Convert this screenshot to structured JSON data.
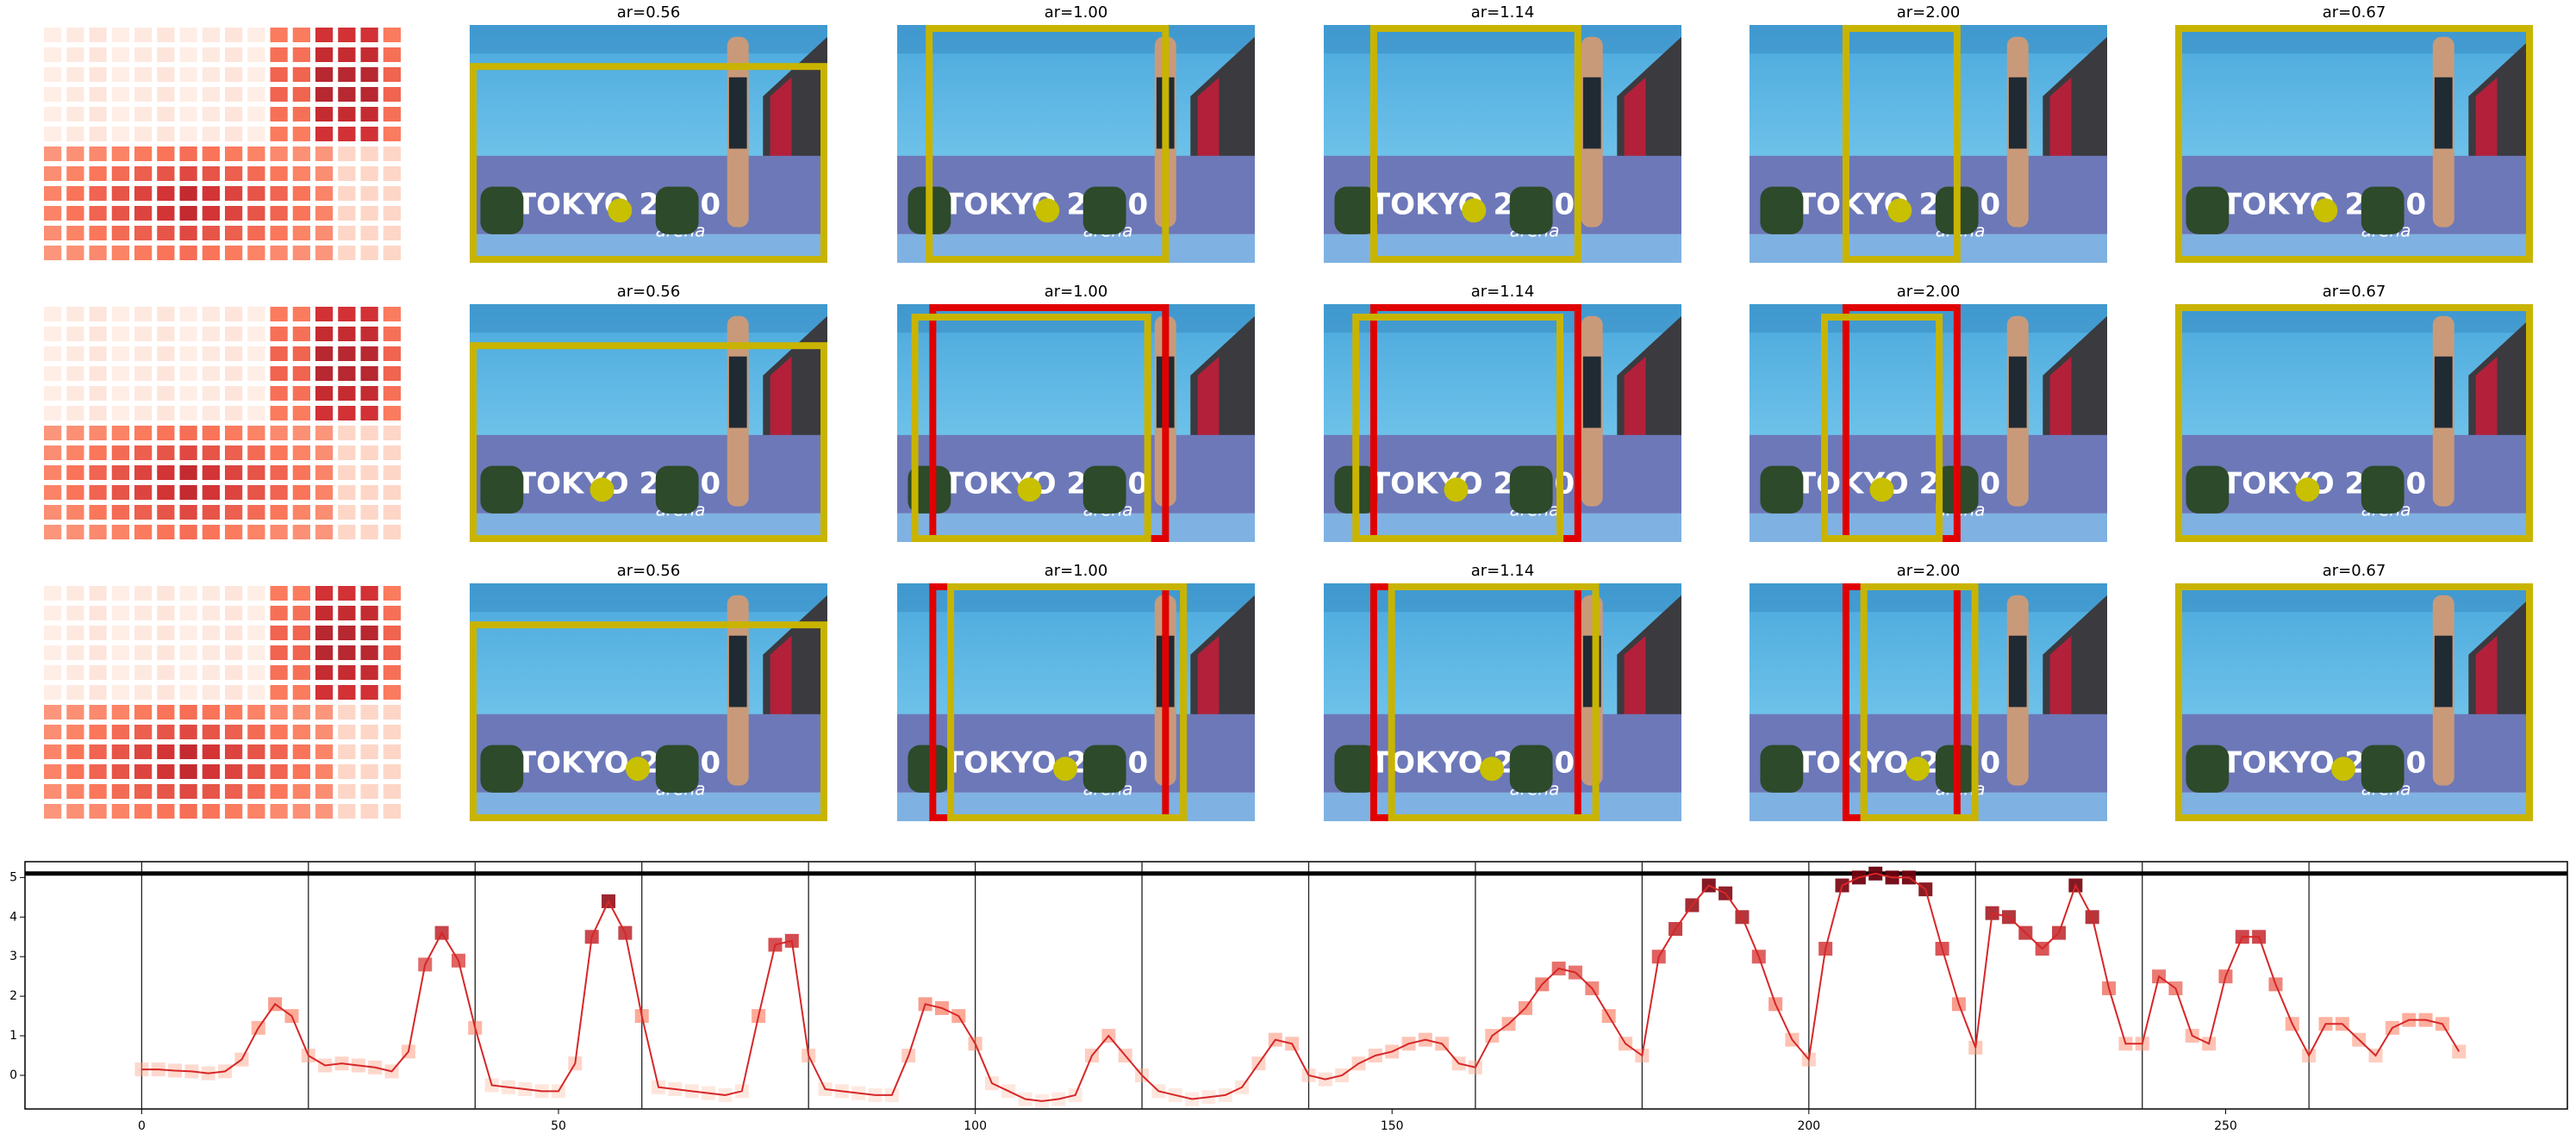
{
  "panels": {
    "banner": "TOKYO 2020",
    "logo": "arena",
    "rows": [
      {
        "titles": [
          "ar=0.56",
          "ar=1.00",
          "ar=1.14",
          "ar=2.00",
          "ar=0.67"
        ]
      },
      {
        "titles": [
          "ar=0.56",
          "ar=1.00",
          "ar=1.14",
          "ar=2.00",
          "ar=0.67"
        ]
      },
      {
        "titles": [
          "ar=0.56",
          "ar=1.00",
          "ar=1.14",
          "ar=2.00",
          "ar=0.67"
        ]
      }
    ]
  },
  "chart_data": {
    "type": "line",
    "color": "#d62728",
    "marker_cmap": "Reds",
    "x": [
      0,
      2,
      4,
      6,
      8,
      10,
      12,
      14,
      16,
      18,
      20,
      22,
      24,
      26,
      28,
      30,
      32,
      34,
      36,
      38,
      40,
      42,
      44,
      46,
      48,
      50,
      52,
      54,
      56,
      58,
      60,
      62,
      64,
      66,
      68,
      70,
      72,
      74,
      76,
      78,
      80,
      82,
      84,
      86,
      88,
      90,
      92,
      94,
      96,
      98,
      100,
      102,
      104,
      106,
      108,
      110,
      112,
      114,
      116,
      118,
      120,
      122,
      124,
      126,
      128,
      130,
      132,
      134,
      136,
      138,
      140,
      142,
      144,
      146,
      148,
      150,
      152,
      154,
      156,
      158,
      160,
      162,
      164,
      166,
      168,
      170,
      172,
      174,
      176,
      178,
      180,
      182,
      184,
      186,
      188,
      190,
      192,
      194,
      196,
      198,
      200,
      202,
      204,
      206,
      208,
      210,
      212,
      214,
      216,
      218,
      220,
      222,
      224,
      226,
      228,
      230,
      232,
      234,
      236,
      238,
      240,
      242,
      244,
      246,
      248,
      250,
      252,
      254,
      256,
      258,
      260,
      262,
      264,
      266,
      268,
      270,
      272,
      274,
      276,
      278
    ],
    "values": [
      0.15,
      0.15,
      0.12,
      0.1,
      0.05,
      0.1,
      0.4,
      1.2,
      1.8,
      1.5,
      0.5,
      0.25,
      0.3,
      0.25,
      0.2,
      0.1,
      0.6,
      2.8,
      3.6,
      2.9,
      1.2,
      -0.25,
      -0.3,
      -0.35,
      -0.4,
      -0.4,
      0.3,
      3.5,
      4.4,
      3.6,
      1.5,
      -0.3,
      -0.35,
      -0.4,
      -0.45,
      -0.5,
      -0.4,
      1.5,
      3.3,
      3.4,
      0.5,
      -0.35,
      -0.4,
      -0.45,
      -0.5,
      -0.5,
      0.5,
      1.8,
      1.7,
      1.5,
      0.8,
      -0.2,
      -0.4,
      -0.6,
      -0.65,
      -0.6,
      -0.5,
      0.5,
      1.0,
      0.5,
      0.0,
      -0.4,
      -0.5,
      -0.6,
      -0.55,
      -0.5,
      -0.3,
      0.3,
      0.9,
      0.8,
      0.0,
      -0.1,
      0.0,
      0.3,
      0.5,
      0.6,
      0.8,
      0.9,
      0.8,
      0.3,
      0.2,
      1.0,
      1.3,
      1.7,
      2.3,
      2.7,
      2.6,
      2.2,
      1.5,
      0.8,
      0.5,
      3.0,
      3.7,
      4.3,
      4.8,
      4.6,
      4.0,
      3.0,
      1.8,
      0.9,
      0.4,
      3.2,
      4.8,
      5.0,
      5.1,
      5.0,
      5.0,
      4.7,
      3.2,
      1.8,
      0.7,
      4.1,
      4.0,
      3.6,
      3.2,
      3.6,
      4.8,
      4.0,
      2.2,
      0.8,
      0.8,
      2.5,
      2.2,
      1.0,
      0.8,
      2.5,
      3.5,
      3.5,
      2.3,
      1.3,
      0.5,
      1.3,
      1.3,
      0.9,
      0.5,
      1.2,
      1.4,
      1.4,
      1.3,
      0.6
    ],
    "xlim": [
      -14,
      291
    ],
    "ylim": [
      -0.85,
      5.4
    ],
    "xticks": [
      0,
      50,
      100,
      150,
      200,
      250
    ],
    "yticks": [
      0,
      1,
      2,
      3,
      4,
      5
    ],
    "vlines": [
      0,
      20,
      40,
      60,
      80,
      100,
      120,
      140,
      160,
      180,
      200,
      220,
      240,
      260
    ],
    "hlines": [
      5.1
    ]
  }
}
